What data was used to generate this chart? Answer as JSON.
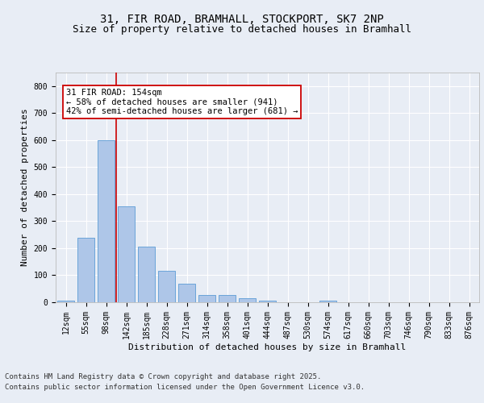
{
  "title1": "31, FIR ROAD, BRAMHALL, STOCKPORT, SK7 2NP",
  "title2": "Size of property relative to detached houses in Bramhall",
  "xlabel": "Distribution of detached houses by size in Bramhall",
  "ylabel": "Number of detached properties",
  "categories": [
    "12sqm",
    "55sqm",
    "98sqm",
    "142sqm",
    "185sqm",
    "228sqm",
    "271sqm",
    "314sqm",
    "358sqm",
    "401sqm",
    "444sqm",
    "487sqm",
    "530sqm",
    "574sqm",
    "617sqm",
    "660sqm",
    "703sqm",
    "746sqm",
    "790sqm",
    "833sqm",
    "876sqm"
  ],
  "values": [
    7,
    238,
    598,
    355,
    207,
    117,
    70,
    28,
    27,
    14,
    5,
    0,
    0,
    7,
    0,
    0,
    0,
    0,
    0,
    0,
    0
  ],
  "bar_color": "#aec6e8",
  "bar_edge_color": "#5b9bd5",
  "vline_color": "#cc0000",
  "annotation_text": "31 FIR ROAD: 154sqm\n← 58% of detached houses are smaller (941)\n42% of semi-detached houses are larger (681) →",
  "annotation_box_color": "#ffffff",
  "annotation_box_edge": "#cc0000",
  "bg_color": "#e8edf5",
  "plot_bg_color": "#e8edf5",
  "grid_color": "#ffffff",
  "yticks": [
    0,
    100,
    200,
    300,
    400,
    500,
    600,
    700,
    800
  ],
  "ylim": [
    0,
    850
  ],
  "footer_line1": "Contains HM Land Registry data © Crown copyright and database right 2025.",
  "footer_line2": "Contains public sector information licensed under the Open Government Licence v3.0.",
  "title1_fontsize": 10,
  "title2_fontsize": 9,
  "xlabel_fontsize": 8,
  "ylabel_fontsize": 8,
  "tick_fontsize": 7,
  "footer_fontsize": 6.5,
  "ann_fontsize": 7.5
}
